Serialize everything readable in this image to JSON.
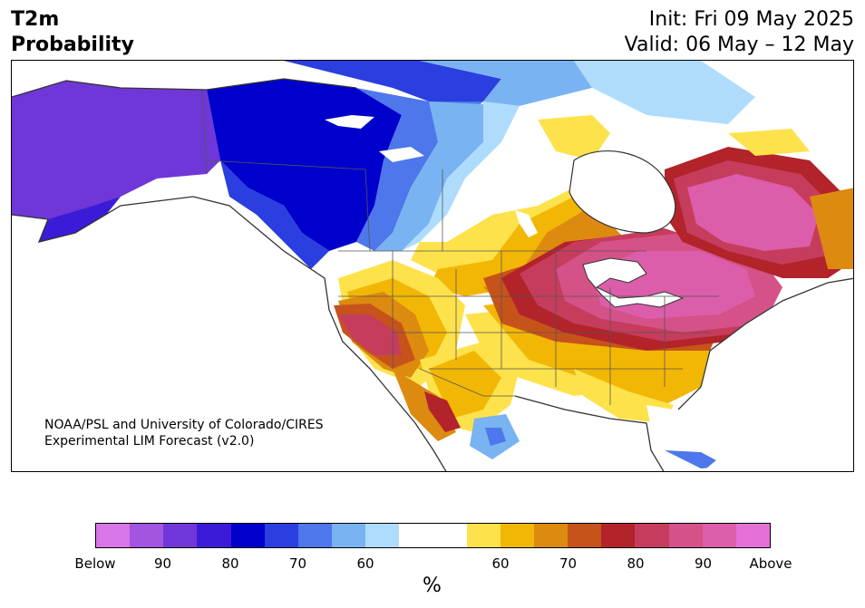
{
  "header": {
    "title_line1": "T2m",
    "title_line2": "Probability",
    "init": "Init: Fri 09 May 2025",
    "valid": "Valid: 06 May – 12 May"
  },
  "credit": {
    "line1": "NOAA/PSL and University of Colorado/CIRES",
    "line2": "Experimental LIM Forecast (v2.0)"
  },
  "colorbar": {
    "colors": [
      "#d876e8",
      "#a255e0",
      "#7037d8",
      "#3b1bd8",
      "#0000cc",
      "#2b3fe0",
      "#4d77ea",
      "#79b3f2",
      "#afdcfc",
      "#ffffff",
      "#fee24b",
      "#f2b705",
      "#dd8a10",
      "#c6541a",
      "#b2232a",
      "#c63c5d",
      "#d45288",
      "#dc5eaa",
      "#e470d8"
    ],
    "tick_labels": [
      "Below",
      "90",
      "80",
      "70",
      "60",
      "60",
      "70",
      "80",
      "90",
      "Above"
    ],
    "unit": "%"
  },
  "legend_colors": {
    "land_white": "#ffffff",
    "state_lines": "#555555",
    "coast": "#333333"
  }
}
